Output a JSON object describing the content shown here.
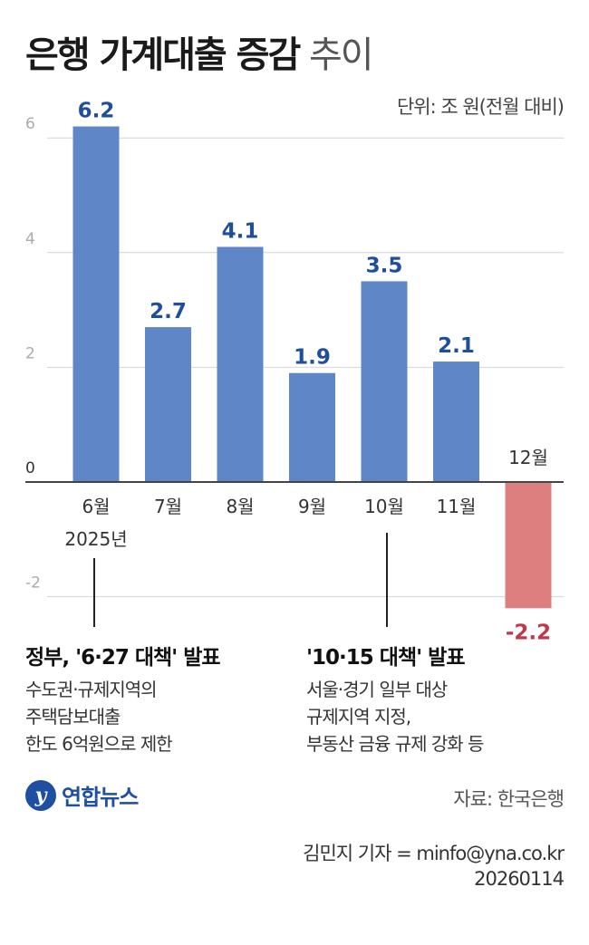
{
  "title": {
    "bold": "은행 가계대출 증감",
    "light": "추이"
  },
  "unit": "단위: 조 원(전월 대비)",
  "chart_data": {
    "type": "bar",
    "categories": [
      "6월",
      "7월",
      "8월",
      "9월",
      "10월",
      "11월",
      "12월"
    ],
    "values": [
      6.2,
      2.7,
      4.1,
      1.9,
      3.5,
      2.1,
      -2.2
    ],
    "value_labels": [
      "6.2",
      "2.7",
      "4.1",
      "1.9",
      "3.5",
      "2.1",
      "-2.2"
    ],
    "year_label": "2025년",
    "y_ticks": [
      "6",
      "4",
      "2",
      "0",
      "-2"
    ],
    "ylim": [
      -2.5,
      6.2
    ],
    "grid": true,
    "colors": {
      "positive": "#5f86c6",
      "negative": "#de7f7f",
      "positive_label": "#1f4e9a",
      "negative_label": "#c0394b"
    }
  },
  "annotations": [
    {
      "head": "정부, '6·27 대책' 발표",
      "lines": [
        "수도권·규제지역의",
        "주택담보대출",
        "한도 6억원으로 제한"
      ]
    },
    {
      "head": "'10·15 대책' 발표",
      "lines": [
        "서울·경기 일부 대상",
        "규제지역 지정,",
        "부동산 금융 규제 강화 등"
      ]
    }
  ],
  "logo": {
    "mark": "y",
    "name": "연합뉴스"
  },
  "source": "자료: 한국은행",
  "credit": {
    "reporter": "김민지 기자 = minfo@yna.co.kr",
    "date": "20260114"
  }
}
